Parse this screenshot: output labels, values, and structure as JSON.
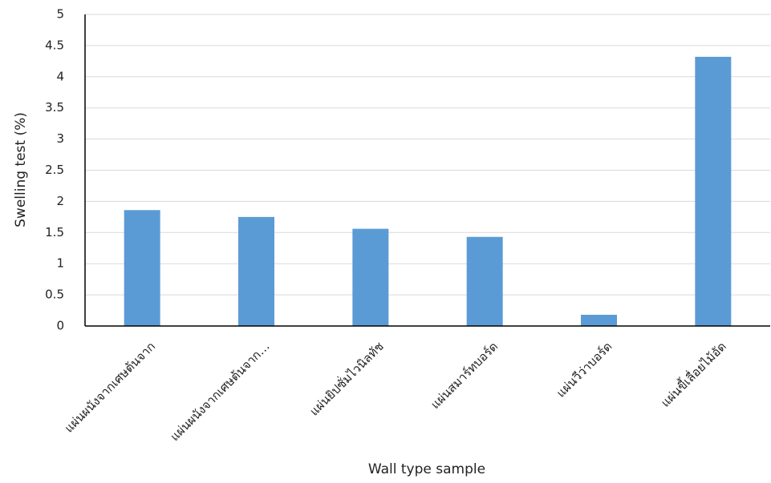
{
  "chart_data": {
    "type": "bar",
    "x_label": "Wall type sample",
    "y_label": "Swelling test (%)",
    "categories": [
      "แผ่นผนังจากเศษต้นจาก",
      "แผ่นผนังจากเศษต้นจาก…",
      "แผ่นยิปซั่มไวนิลทัช",
      "แผ่นสมาร์ทบอร์ด",
      "แผ่นวีว่าบอร์ด",
      "แผ่นขี้เลื่อยไม้อัด"
    ],
    "values": [
      1.86,
      1.75,
      1.56,
      1.43,
      0.18,
      4.32
    ],
    "color": "#5b9bd5",
    "ylim": [
      0,
      5
    ],
    "yticks": [
      0,
      0.5,
      1,
      1.5,
      2,
      2.5,
      3,
      3.5,
      4,
      4.5,
      5
    ],
    "grid": true
  }
}
